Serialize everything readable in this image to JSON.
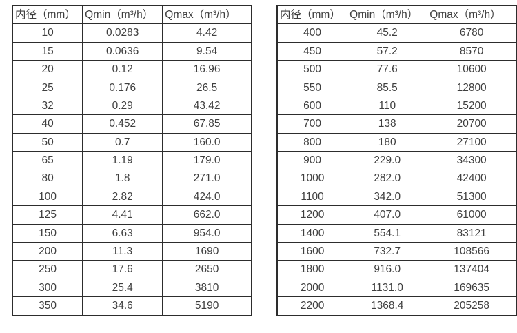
{
  "colors": {
    "background": "#ffffff",
    "text": "#3f3f3f",
    "border": "#2d2d2d"
  },
  "chart_data": [
    {
      "type": "table",
      "name": "flow-rates-small-diameters",
      "headers": [
        "内径（mm）",
        "Qmin（m³/h）",
        "Qmax（m³/h）"
      ],
      "rows": [
        [
          "10",
          "0.0283",
          "4.42"
        ],
        [
          "15",
          "0.0636",
          "9.54"
        ],
        [
          "20",
          "0.12",
          "16.96"
        ],
        [
          "25",
          "0.176",
          "26.5"
        ],
        [
          "32",
          "0.29",
          "43.42"
        ],
        [
          "40",
          "0.452",
          "67.85"
        ],
        [
          "50",
          "0.7",
          "160.0"
        ],
        [
          "65",
          "1.19",
          "179.0"
        ],
        [
          "80",
          "1.8",
          "271.0"
        ],
        [
          "100",
          "2.82",
          "424.0"
        ],
        [
          "125",
          "4.41",
          "662.0"
        ],
        [
          "150",
          "6.63",
          "954.0"
        ],
        [
          "200",
          "11.3",
          "1690"
        ],
        [
          "250",
          "17.6",
          "2650"
        ],
        [
          "300",
          "25.4",
          "3810"
        ],
        [
          "350",
          "34.6",
          "5190"
        ]
      ]
    },
    {
      "type": "table",
      "name": "flow-rates-large-diameters",
      "headers": [
        "内径（mm）",
        "Qmin（m³/h）",
        "Qmax（m³/h）"
      ],
      "rows": [
        [
          "400",
          "45.2",
          "6780"
        ],
        [
          "450",
          "57.2",
          "8570"
        ],
        [
          "500",
          "77.6",
          "10600"
        ],
        [
          "550",
          "85.5",
          "12800"
        ],
        [
          "600",
          "110",
          "15200"
        ],
        [
          "700",
          "138",
          "20700"
        ],
        [
          "800",
          "180",
          "27100"
        ],
        [
          "900",
          "229.0",
          "34300"
        ],
        [
          "1000",
          "282.0",
          "42400"
        ],
        [
          "1100",
          "342.0",
          "51300"
        ],
        [
          "1200",
          "407.0",
          "61000"
        ],
        [
          "1400",
          "554.1",
          "83121"
        ],
        [
          "1600",
          "732.7",
          "108566"
        ],
        [
          "1800",
          "916.0",
          "137404"
        ],
        [
          "2000",
          "1131.0",
          "169635"
        ],
        [
          "2200",
          "1368.4",
          "205258"
        ]
      ]
    }
  ]
}
